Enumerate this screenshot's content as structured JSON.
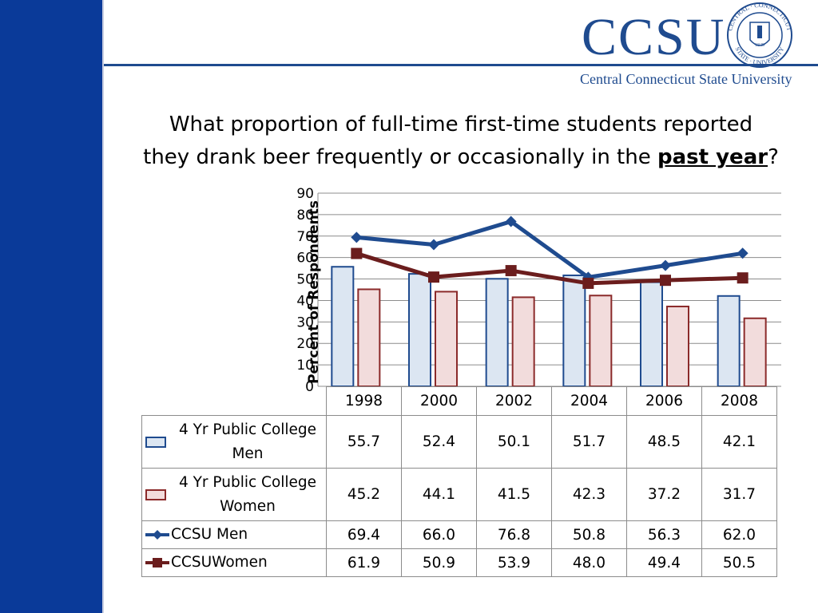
{
  "header": {
    "logo_text": "CCSU",
    "university_name": "Central Connecticut State University",
    "seal_top": "CENTRAL · CONNECTICUT",
    "seal_bottom": "STATE · UNIVERSITY",
    "seal_year": "1849"
  },
  "slide": {
    "title_line1": "What proportion of full-time first-time students reported",
    "title_line2_prefix": "they drank beer frequently or occasionally in the ",
    "title_line2_emphasis": "past year",
    "title_line2_suffix": "?"
  },
  "colors": {
    "sidebar": "#0a3a99",
    "accent": "#1f4b8f",
    "men_bar_fill": "#dce6f2",
    "men_bar_border": "#1f4b8f",
    "women_bar_fill": "#f2dcdc",
    "women_bar_border": "#8b2a2a",
    "ccsu_men_line": "#1f4b8f",
    "ccsu_women_line": "#6b1d1d"
  },
  "chart_data": {
    "type": "bar",
    "ylabel": "Percent of Respondents",
    "ylim": [
      0,
      90
    ],
    "yticks": [
      0,
      10,
      20,
      30,
      40,
      50,
      60,
      70,
      80,
      90
    ],
    "grid": true,
    "categories": [
      "1998",
      "2000",
      "2002",
      "2004",
      "2006",
      "2008"
    ],
    "series": [
      {
        "name": "4 Yr Public College Men",
        "kind": "bar",
        "values": [
          55.7,
          52.4,
          50.1,
          51.7,
          48.5,
          42.1
        ],
        "display": [
          "55.7",
          "52.4",
          "50.1",
          "51.7",
          "48.5",
          "42.1"
        ]
      },
      {
        "name": "4 Yr Public College Women",
        "kind": "bar",
        "values": [
          45.2,
          44.1,
          41.5,
          42.3,
          37.2,
          31.7
        ],
        "display": [
          "45.2",
          "44.1",
          "41.5",
          "42.3",
          "37.2",
          "31.7"
        ]
      },
      {
        "name": "CCSU Men",
        "kind": "line",
        "marker": "diamond",
        "values": [
          69.4,
          66.0,
          76.8,
          50.8,
          56.3,
          62.0
        ],
        "display": [
          "69.4",
          "66.0",
          "76.8",
          "50.8",
          "56.3",
          "62.0"
        ]
      },
      {
        "name": "CCSUWomen",
        "kind": "line",
        "marker": "square",
        "values": [
          61.9,
          50.9,
          53.9,
          48.0,
          49.4,
          50.5
        ],
        "display": [
          "61.9",
          "50.9",
          "53.9",
          "48.0",
          "49.4",
          "50.5"
        ]
      }
    ],
    "legend_placement": "data-table"
  }
}
